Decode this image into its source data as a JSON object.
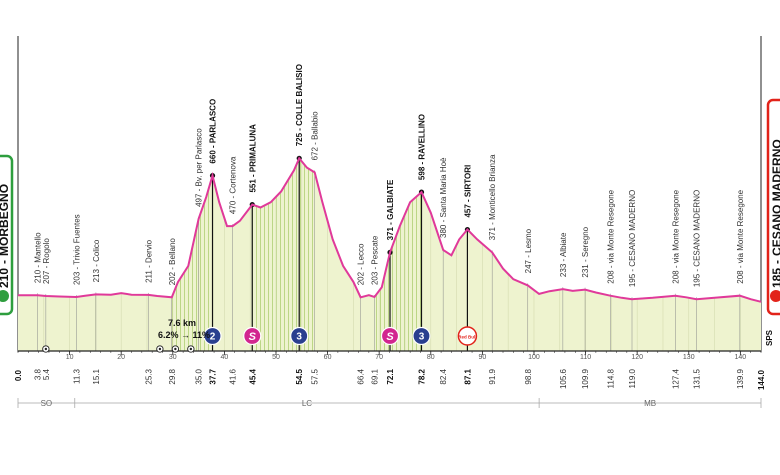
{
  "stage": {
    "start": {
      "alt": "210",
      "name": "MORBEGNO",
      "km": "0.0",
      "color": "#2e9e3e"
    },
    "finish": {
      "alt": "185",
      "name": "CESANO MADERNO",
      "km": "144.0",
      "color": "#e2231a"
    }
  },
  "sprint_note": "SPS",
  "climb_note": {
    "length": "7.6 km",
    "gradient": "6.2% → 11%"
  },
  "provinces": [
    {
      "code": "SO",
      "from_km": 0,
      "to_km": 11
    },
    {
      "code": "LC",
      "from_km": 11,
      "to_km": 101
    },
    {
      "code": "MB",
      "from_km": 101,
      "to_km": 144
    }
  ],
  "km_ticks": [
    "10",
    "20",
    "30",
    "40",
    "50",
    "60",
    "70",
    "80",
    "90",
    "100",
    "110",
    "120",
    "130",
    "140"
  ],
  "colors": {
    "profile": "#e0399a",
    "fill": "#eef3cf",
    "hatch": "#a9cc6a",
    "axis": "#222222",
    "kom": "#2a3f8f",
    "sprint": "#d2268f",
    "bonus": "#e2231a"
  },
  "chart_data": {
    "type": "area",
    "xlabel": "",
    "ylabel": "",
    "xlim": [
      0,
      144
    ],
    "ylim": [
      0,
      800
    ],
    "profile": [
      [
        0,
        210
      ],
      [
        3.8,
        210
      ],
      [
        5.4,
        207
      ],
      [
        8,
        205
      ],
      [
        11.3,
        203
      ],
      [
        13,
        208
      ],
      [
        15.1,
        213
      ],
      [
        18,
        212
      ],
      [
        20,
        218
      ],
      [
        22,
        212
      ],
      [
        25.3,
        211
      ],
      [
        27,
        207
      ],
      [
        29.8,
        202
      ],
      [
        31,
        260
      ],
      [
        33,
        320
      ],
      [
        35,
        497
      ],
      [
        36.5,
        580
      ],
      [
        37.7,
        660
      ],
      [
        39,
        560
      ],
      [
        40.5,
        470
      ],
      [
        41.6,
        470
      ],
      [
        43,
        490
      ],
      [
        45.4,
        551
      ],
      [
        47,
        540
      ],
      [
        49,
        560
      ],
      [
        51,
        600
      ],
      [
        53.5,
        680
      ],
      [
        54.5,
        725
      ],
      [
        56,
        690
      ],
      [
        57.5,
        672
      ],
      [
        59,
        560
      ],
      [
        61,
        420
      ],
      [
        63,
        320
      ],
      [
        65,
        260
      ],
      [
        66.4,
        202
      ],
      [
        68,
        210
      ],
      [
        69.1,
        203
      ],
      [
        70.5,
        240
      ],
      [
        72.1,
        371
      ],
      [
        74,
        470
      ],
      [
        76,
        560
      ],
      [
        78.2,
        598
      ],
      [
        80,
        520
      ],
      [
        82.4,
        380
      ],
      [
        84,
        360
      ],
      [
        85.5,
        420
      ],
      [
        87.1,
        457
      ],
      [
        89,
        420
      ],
      [
        91.9,
        371
      ],
      [
        94,
        310
      ],
      [
        96,
        270
      ],
      [
        98.8,
        247
      ],
      [
        101,
        215
      ],
      [
        103,
        225
      ],
      [
        105.6,
        233
      ],
      [
        107.5,
        226
      ],
      [
        109.9,
        231
      ],
      [
        112,
        220
      ],
      [
        114.8,
        208
      ],
      [
        117,
        200
      ],
      [
        119,
        195
      ],
      [
        123,
        200
      ],
      [
        127.4,
        208
      ],
      [
        129.5,
        202
      ],
      [
        131.5,
        195
      ],
      [
        135,
        200
      ],
      [
        139.9,
        208
      ],
      [
        142,
        195
      ],
      [
        144,
        185
      ]
    ],
    "climb_shading": [
      [
        29.8,
        37.7
      ],
      [
        45.4,
        57.5
      ],
      [
        69.1,
        78.2
      ]
    ],
    "km_markers": [
      {
        "km": "0.0",
        "alt": "210",
        "name": "MORBEGNO",
        "x": 0,
        "bold": true
      },
      {
        "km": "3.8",
        "alt": "210",
        "name": "Mantello",
        "x": 3.8
      },
      {
        "km": "5.4",
        "alt": "207",
        "name": "Rogolo",
        "x": 5.4
      },
      {
        "km": "11.3",
        "alt": "203",
        "name": "Trivio Fuentes",
        "x": 11.3
      },
      {
        "km": "15.1",
        "alt": "213",
        "name": "Colico",
        "x": 15.1
      },
      {
        "km": "25.3",
        "alt": "211",
        "name": "Dervio",
        "x": 25.3
      },
      {
        "km": "29.8",
        "alt": "202",
        "name": "Bellano",
        "x": 29.8
      },
      {
        "km": "35.0",
        "alt": "497",
        "name": "Bv. per Parlasco",
        "x": 35.0
      },
      {
        "km": "37.7",
        "alt": "660",
        "name": "PARLASCO",
        "x": 37.7,
        "bold": true
      },
      {
        "km": "41.6",
        "alt": "470",
        "name": "Cortenova",
        "x": 41.6
      },
      {
        "km": "45.4",
        "alt": "551",
        "name": "PRIMALUNA",
        "x": 45.4,
        "bold": true
      },
      {
        "km": "54.5",
        "alt": "725",
        "name": "COLLE BALISIO",
        "x": 54.5,
        "bold": true
      },
      {
        "km": "57.5",
        "alt": "672",
        "name": "Ballabio",
        "x": 57.5
      },
      {
        "km": "66.4",
        "alt": "202",
        "name": "Lecco",
        "x": 66.4
      },
      {
        "km": "69.1",
        "alt": "203",
        "name": "Pescate",
        "x": 69.1
      },
      {
        "km": "72.1",
        "alt": "371",
        "name": "GALBIATE",
        "x": 72.1,
        "bold": true
      },
      {
        "km": "78.2",
        "alt": "598",
        "name": "RAVELLINO",
        "x": 78.2,
        "bold": true
      },
      {
        "km": "82.4",
        "alt": "380",
        "name": "Santa Maria Hoè",
        "x": 82.4
      },
      {
        "km": "87.1",
        "alt": "457",
        "name": "SIRTORI",
        "x": 87.1,
        "bold": true
      },
      {
        "km": "91.9",
        "alt": "371",
        "name": "Monticello Brianza",
        "x": 91.9
      },
      {
        "km": "98.8",
        "alt": "247",
        "name": "Lesmo",
        "x": 98.8
      },
      {
        "km": "105.6",
        "alt": "233",
        "name": "Albiate",
        "x": 105.6
      },
      {
        "km": "109.9",
        "alt": "231",
        "name": "Seregno",
        "x": 109.9
      },
      {
        "km": "114.8",
        "alt": "208",
        "name": "via Monte Resegone",
        "x": 114.8
      },
      {
        "km": "119.0",
        "alt": "195",
        "name": "CESANO MADERNO",
        "x": 119.0
      },
      {
        "km": "127.4",
        "alt": "208",
        "name": "via Monte Resegone",
        "x": 127.4
      },
      {
        "km": "131.5",
        "alt": "195",
        "name": "CESANO MADERNO",
        "x": 131.5
      },
      {
        "km": "139.9",
        "alt": "208",
        "name": "via Monte Resegone",
        "x": 139.9
      },
      {
        "km": "144.0",
        "alt": "185",
        "name": "CESANO MADERNO",
        "x": 144.0,
        "bold": true
      }
    ],
    "kom_badges": [
      {
        "x": 37.7,
        "category": "2"
      },
      {
        "x": 54.5,
        "category": "3"
      },
      {
        "x": 78.2,
        "category": "3"
      }
    ],
    "sprint_badges": [
      {
        "x": 45.4,
        "label": "S"
      },
      {
        "x": 72.1,
        "label": "S"
      }
    ],
    "bonus_badges": [
      {
        "x": 87.1,
        "label": "Red Bull"
      }
    ],
    "road_symbols": [
      {
        "x": 5.4
      },
      {
        "x": 27.5
      },
      {
        "x": 30.5
      },
      {
        "x": 33.5
      }
    ]
  }
}
